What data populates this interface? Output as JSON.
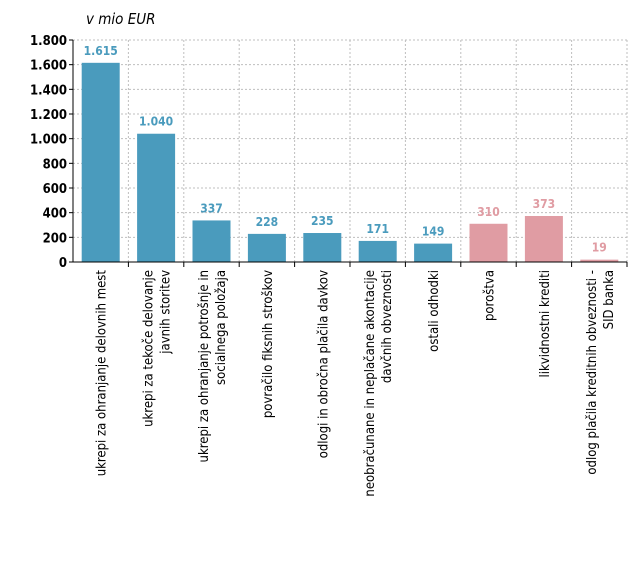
{
  "chart_data": {
    "type": "bar",
    "title": "",
    "unit_label": "v mio EUR",
    "xlabel": "",
    "ylabel": "",
    "ylim": [
      0,
      1800
    ],
    "yticks": [
      0,
      200,
      400,
      600,
      800,
      1000,
      1200,
      1400,
      1600,
      1800
    ],
    "ytick_labels": [
      "0",
      "200",
      "400",
      "600",
      "800",
      "1.000",
      "1.200",
      "1.400",
      "1.600",
      "1.800"
    ],
    "grid": true,
    "legend": "none",
    "categories": [
      [
        "ukrepi za ohranjanje delovnih mest"
      ],
      [
        "ukrepi za tekoče delovanje",
        "javnih storitev"
      ],
      [
        "ukrepi za ohranjanje potrošnje in",
        "socialnega položaja"
      ],
      [
        "povračilo fiksnih stroškov"
      ],
      [
        "odlogi in obročna plačila davkov"
      ],
      [
        "neobračunane in neplačane akontacije",
        "davčnih obveznosti"
      ],
      [
        "ostali odhodki"
      ],
      [
        "poroštva"
      ],
      [
        "likvidnostni krediti"
      ],
      [
        "odlog plačila kreditnih obveznosti -",
        "SID banka"
      ]
    ],
    "values": [
      1615,
      1040,
      337,
      228,
      235,
      171,
      149,
      310,
      373,
      19
    ],
    "value_labels": [
      "1.615",
      "1.040",
      "337",
      "228",
      "235",
      "171",
      "149",
      "310",
      "373",
      "19"
    ],
    "colors": [
      "#4a9bbd",
      "#4a9bbd",
      "#4a9bbd",
      "#4a9bbd",
      "#4a9bbd",
      "#4a9bbd",
      "#4a9bbd",
      "#e09ca3",
      "#e09ca3",
      "#e09ca3"
    ]
  }
}
